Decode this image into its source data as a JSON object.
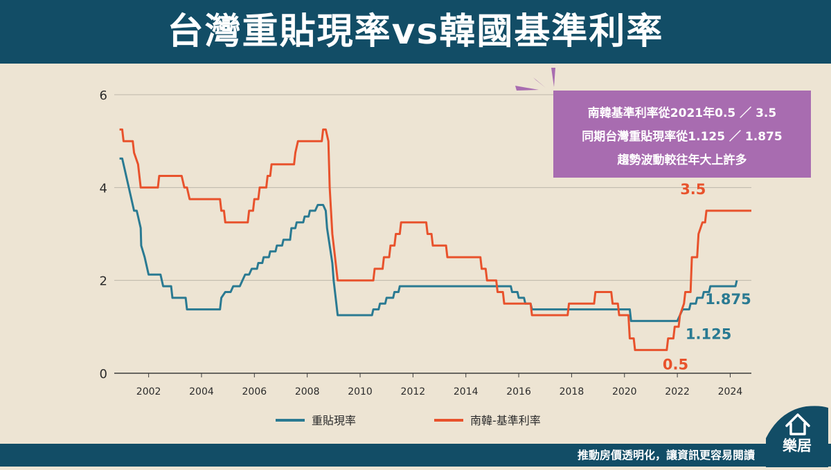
{
  "title": "台灣重貼現率vs韓國基準利率",
  "footer": {
    "slogan": "推動房價透明化，讓資訊更容易閱讀",
    "brand": "樂居"
  },
  "annotation": {
    "lines": [
      "南韓基準利率從2021年0.5 ／ 3.5",
      "同期台灣重貼現率從1.125 ／ 1.875",
      "趨勢波動較往年大上許多"
    ]
  },
  "colors": {
    "taiwan": "#2a7a92",
    "korea": "#e8522c",
    "header": "#124d66",
    "note": "#a86cb0",
    "background": "#ede4d3"
  },
  "chart_data": {
    "type": "line",
    "title": "",
    "xlabel": "",
    "ylabel": "",
    "xlim": [
      2000.7,
      2024.8
    ],
    "ylim": [
      0,
      6
    ],
    "x_ticks": [
      2002,
      2004,
      2006,
      2008,
      2010,
      2012,
      2014,
      2016,
      2018,
      2020,
      2022,
      2024
    ],
    "y_ticks": [
      0,
      2,
      4,
      6
    ],
    "grid": "horizontal",
    "legend": "bottom",
    "series": [
      {
        "name": "重貼現率",
        "color": "#2a7a92",
        "points": [
          [
            2000.9,
            4.625
          ],
          [
            2001.0,
            4.625
          ],
          [
            2001.1,
            4.375
          ],
          [
            2001.3,
            3.875
          ],
          [
            2001.45,
            3.5
          ],
          [
            2001.55,
            3.5
          ],
          [
            2001.6,
            3.375
          ],
          [
            2001.7,
            3.125
          ],
          [
            2001.72,
            2.75
          ],
          [
            2001.85,
            2.5
          ],
          [
            2002.0,
            2.125
          ],
          [
            2002.45,
            2.125
          ],
          [
            2002.55,
            1.875
          ],
          [
            2002.85,
            1.875
          ],
          [
            2002.9,
            1.625
          ],
          [
            2003.4,
            1.625
          ],
          [
            2003.45,
            1.375
          ],
          [
            2004.7,
            1.375
          ],
          [
            2004.75,
            1.625
          ],
          [
            2004.9,
            1.75
          ],
          [
            2005.1,
            1.75
          ],
          [
            2005.2,
            1.875
          ],
          [
            2005.45,
            1.875
          ],
          [
            2005.55,
            2.0
          ],
          [
            2005.65,
            2.125
          ],
          [
            2005.8,
            2.125
          ],
          [
            2005.9,
            2.25
          ],
          [
            2006.1,
            2.25
          ],
          [
            2006.15,
            2.375
          ],
          [
            2006.3,
            2.375
          ],
          [
            2006.35,
            2.5
          ],
          [
            2006.55,
            2.5
          ],
          [
            2006.6,
            2.625
          ],
          [
            2006.8,
            2.625
          ],
          [
            2006.85,
            2.75
          ],
          [
            2007.05,
            2.75
          ],
          [
            2007.1,
            2.875
          ],
          [
            2007.35,
            2.875
          ],
          [
            2007.4,
            3.125
          ],
          [
            2007.55,
            3.125
          ],
          [
            2007.6,
            3.25
          ],
          [
            2007.85,
            3.25
          ],
          [
            2007.9,
            3.375
          ],
          [
            2008.05,
            3.375
          ],
          [
            2008.1,
            3.5
          ],
          [
            2008.3,
            3.5
          ],
          [
            2008.4,
            3.625
          ],
          [
            2008.6,
            3.625
          ],
          [
            2008.7,
            3.5
          ],
          [
            2008.75,
            3.125
          ],
          [
            2008.85,
            2.75
          ],
          [
            2008.95,
            2.375
          ],
          [
            2009.0,
            2.0
          ],
          [
            2009.1,
            1.5
          ],
          [
            2009.15,
            1.25
          ],
          [
            2010.45,
            1.25
          ],
          [
            2010.5,
            1.375
          ],
          [
            2010.7,
            1.375
          ],
          [
            2010.75,
            1.5
          ],
          [
            2010.95,
            1.5
          ],
          [
            2011.0,
            1.625
          ],
          [
            2011.25,
            1.625
          ],
          [
            2011.3,
            1.75
          ],
          [
            2011.45,
            1.75
          ],
          [
            2011.5,
            1.875
          ],
          [
            2015.7,
            1.875
          ],
          [
            2015.75,
            1.75
          ],
          [
            2015.95,
            1.75
          ],
          [
            2016.0,
            1.625
          ],
          [
            2016.2,
            1.625
          ],
          [
            2016.25,
            1.5
          ],
          [
            2016.45,
            1.5
          ],
          [
            2016.5,
            1.375
          ],
          [
            2020.2,
            1.375
          ],
          [
            2020.25,
            1.125
          ],
          [
            2021.9,
            1.125
          ],
          [
            2022.0,
            1.125
          ],
          [
            2022.2,
            1.375
          ],
          [
            2022.45,
            1.375
          ],
          [
            2022.5,
            1.5
          ],
          [
            2022.7,
            1.5
          ],
          [
            2022.75,
            1.625
          ],
          [
            2022.95,
            1.625
          ],
          [
            2023.0,
            1.75
          ],
          [
            2023.2,
            1.75
          ],
          [
            2023.25,
            1.875
          ],
          [
            2024.2,
            1.875
          ],
          [
            2024.25,
            2.0
          ]
        ]
      },
      {
        "name": "南韓-基準利率",
        "color": "#e8522c",
        "points": [
          [
            2000.9,
            5.25
          ],
          [
            2001.0,
            5.25
          ],
          [
            2001.05,
            5.0
          ],
          [
            2001.4,
            5.0
          ],
          [
            2001.45,
            4.75
          ],
          [
            2001.6,
            4.5
          ],
          [
            2001.7,
            4.0
          ],
          [
            2002.35,
            4.0
          ],
          [
            2002.4,
            4.25
          ],
          [
            2003.25,
            4.25
          ],
          [
            2003.35,
            4.0
          ],
          [
            2003.45,
            4.0
          ],
          [
            2003.55,
            3.75
          ],
          [
            2004.7,
            3.75
          ],
          [
            2004.75,
            3.5
          ],
          [
            2004.85,
            3.5
          ],
          [
            2004.9,
            3.25
          ],
          [
            2005.75,
            3.25
          ],
          [
            2005.8,
            3.5
          ],
          [
            2005.95,
            3.5
          ],
          [
            2006.0,
            3.75
          ],
          [
            2006.15,
            3.75
          ],
          [
            2006.2,
            4.0
          ],
          [
            2006.45,
            4.0
          ],
          [
            2006.5,
            4.25
          ],
          [
            2006.6,
            4.25
          ],
          [
            2006.65,
            4.5
          ],
          [
            2007.5,
            4.5
          ],
          [
            2007.55,
            4.75
          ],
          [
            2007.65,
            5.0
          ],
          [
            2008.55,
            5.0
          ],
          [
            2008.6,
            5.25
          ],
          [
            2008.7,
            5.25
          ],
          [
            2008.8,
            5.0
          ],
          [
            2008.85,
            4.0
          ],
          [
            2008.95,
            3.0
          ],
          [
            2009.05,
            2.5
          ],
          [
            2009.15,
            2.0
          ],
          [
            2010.5,
            2.0
          ],
          [
            2010.55,
            2.25
          ],
          [
            2010.85,
            2.25
          ],
          [
            2010.9,
            2.5
          ],
          [
            2011.1,
            2.5
          ],
          [
            2011.15,
            2.75
          ],
          [
            2011.3,
            2.75
          ],
          [
            2011.35,
            3.0
          ],
          [
            2011.5,
            3.0
          ],
          [
            2011.55,
            3.25
          ],
          [
            2012.5,
            3.25
          ],
          [
            2012.55,
            3.0
          ],
          [
            2012.7,
            3.0
          ],
          [
            2012.75,
            2.75
          ],
          [
            2013.25,
            2.75
          ],
          [
            2013.3,
            2.5
          ],
          [
            2014.55,
            2.5
          ],
          [
            2014.6,
            2.25
          ],
          [
            2014.75,
            2.25
          ],
          [
            2014.8,
            2.0
          ],
          [
            2015.15,
            2.0
          ],
          [
            2015.2,
            1.75
          ],
          [
            2015.4,
            1.75
          ],
          [
            2015.45,
            1.5
          ],
          [
            2016.45,
            1.5
          ],
          [
            2016.5,
            1.25
          ],
          [
            2017.85,
            1.25
          ],
          [
            2017.9,
            1.5
          ],
          [
            2018.85,
            1.5
          ],
          [
            2018.9,
            1.75
          ],
          [
            2019.5,
            1.75
          ],
          [
            2019.55,
            1.5
          ],
          [
            2019.75,
            1.5
          ],
          [
            2019.8,
            1.25
          ],
          [
            2020.15,
            1.25
          ],
          [
            2020.2,
            0.75
          ],
          [
            2020.35,
            0.75
          ],
          [
            2020.4,
            0.5
          ],
          [
            2021.6,
            0.5
          ],
          [
            2021.65,
            0.75
          ],
          [
            2021.85,
            0.75
          ],
          [
            2021.9,
            1.0
          ],
          [
            2022.05,
            1.0
          ],
          [
            2022.1,
            1.25
          ],
          [
            2022.25,
            1.5
          ],
          [
            2022.3,
            1.75
          ],
          [
            2022.5,
            1.75
          ],
          [
            2022.55,
            2.5
          ],
          [
            2022.75,
            2.5
          ],
          [
            2022.8,
            3.0
          ],
          [
            2022.95,
            3.25
          ],
          [
            2023.05,
            3.25
          ],
          [
            2023.1,
            3.5
          ],
          [
            2024.8,
            3.5
          ]
        ]
      }
    ],
    "annotations": [
      {
        "text": "3.5",
        "x": 2023.05,
        "y": 3.5,
        "color": "#e8522c"
      },
      {
        "text": "0.5",
        "x": 2021.55,
        "y": 0.5,
        "color": "#e8522c"
      },
      {
        "text": "1.125",
        "x": 2022.1,
        "y": 1.125,
        "color": "#2a7a92"
      },
      {
        "text": "1.875",
        "x": 2024.1,
        "y": 1.875,
        "color": "#2a7a92"
      }
    ]
  }
}
